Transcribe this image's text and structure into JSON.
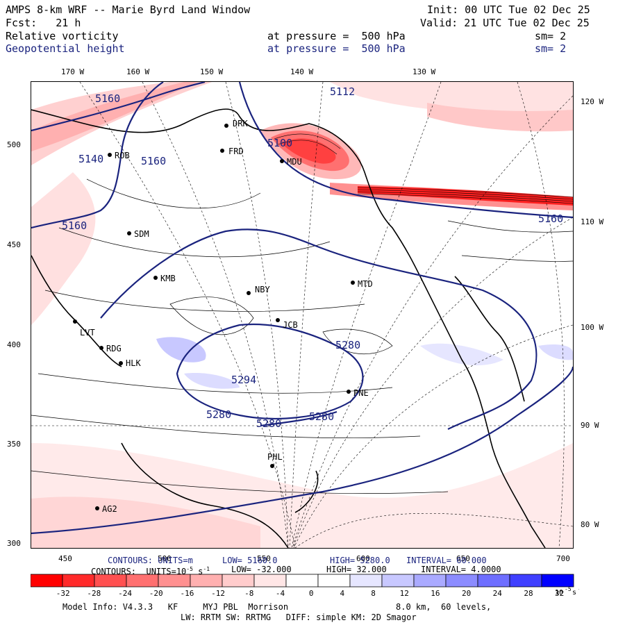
{
  "header": {
    "title": "AMPS 8-km WRF -- Marie Byrd Land Window",
    "init": "Init: 00 UTC Tue 02 Dec 25",
    "fcst": "Fcst:   21 h",
    "valid": "Valid: 21 UTC Tue 02 Dec 25",
    "field1": {
      "name": "Relative vorticity",
      "level": "at pressure =  500 hPa",
      "sm": "sm= 2"
    },
    "field2": {
      "name": "Geopotential height",
      "level": "at pressure =  500 hPa",
      "sm": "sm= 2"
    }
  },
  "axes": {
    "top_lon": [
      "170 W",
      "160 W",
      "150 W",
      "140 W",
      "130 W"
    ],
    "right_lon": [
      "120 W",
      "110 W",
      "100 W",
      "90 W",
      "80 W"
    ],
    "left_y": [
      "500",
      "450",
      "400",
      "350",
      "300"
    ],
    "bottom_x": [
      "450",
      "500",
      "550",
      "600",
      "650",
      "700"
    ]
  },
  "contour_info": {
    "line1_label": "CONTOURS: UNITS=m",
    "line1_low": "LOW= 5160.0",
    "line1_high": "HIGH= 5280.0",
    "line1_interval": "INTERVAL= 60.000",
    "line2_label": "CONTOURS:  UNITS=10",
    "line2_exp": "-5",
    "line2_unit": " s",
    "line2_unitexp": "-1",
    "line2_low": "LOW= -32.000",
    "line2_high": "HIGH= 32.000",
    "line2_interval": "INTERVAL= 4.0000"
  },
  "colorbar": {
    "labels": [
      "-32",
      "-28",
      "-24",
      "-20",
      "-16",
      "-12",
      "-8",
      "-4",
      "0",
      "4",
      "8",
      "12",
      "16",
      "20",
      "24",
      "28",
      "32"
    ],
    "unit": "10",
    "unit_exp": "-5",
    "unit_s": " s",
    "unit_s_exp": "-1",
    "colors": [
      "#ff0000",
      "#ff2a2a",
      "#ff5050",
      "#ff7070",
      "#ff9090",
      "#ffb0b0",
      "#ffcccc",
      "#ffe6e6",
      "#ffffff",
      "#ffffff",
      "#e6e6ff",
      "#c8c8ff",
      "#aaaaff",
      "#8c8cff",
      "#6e6eff",
      "#4040ff",
      "#0000ff"
    ]
  },
  "stations": [
    "ROB",
    "SDM",
    "KMB",
    "LVT",
    "RDG",
    "HLK",
    "NBY",
    "JCB",
    "FRD",
    "DRK",
    "MDU",
    "MTD",
    "PNE",
    "PHL",
    "AG2"
  ],
  "height_labels": [
    "5160",
    "5100",
    "5140",
    "5160",
    "5280",
    "5294",
    "5280",
    "5280",
    "5280",
    "5160",
    "5112",
    "5160"
  ],
  "footer": {
    "line1a": "Model Info: V4.3.3   KF     MYJ PBL  Morrison",
    "line1b": "8.0 km,  60 levels,",
    "line2": "LW: RRTM SW: RRTMG   DIFF: simple KM: 2D Smagor"
  }
}
